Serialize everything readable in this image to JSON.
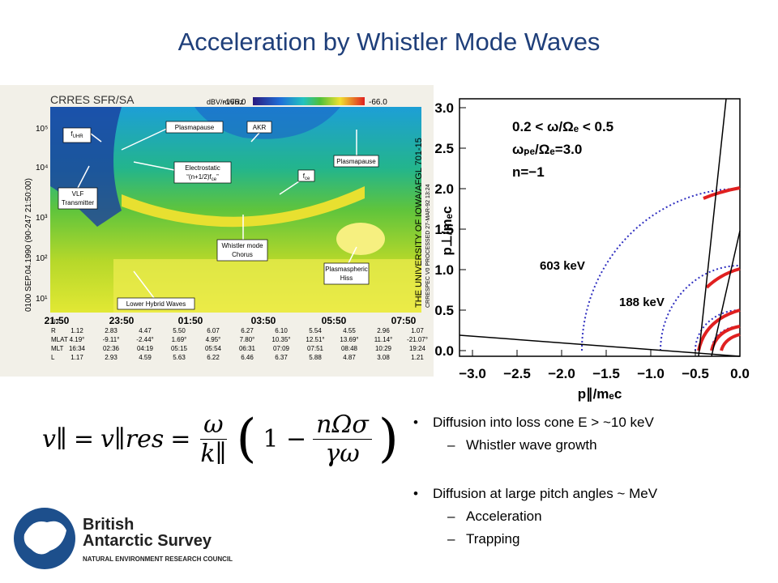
{
  "title": "Acceleration by Whistler Mode Waves",
  "spectrogram": {
    "header": "CRRES SFR/SA",
    "colorbar_unit": "dBV/m/√Hz",
    "colorbar_min": "-166.0",
    "colorbar_max": "-66.0",
    "left_caption": "0100  SEP.04.1990  (90-247 21:50:00)",
    "right_caption": "THE UNIVERSITY OF IOWA/AFGL 701-15",
    "right_caption2": "CRRESPEC V0    PROCESSED 27-MAR-92 13:24",
    "yticks": [
      "10¹",
      "10²",
      "10³",
      "10⁴",
      "10⁵"
    ],
    "annotations": [
      {
        "lines": [
          [
            "f",
            "UHR"
          ]
        ]
      },
      {
        "lines": [
          [
            "Plasmapause"
          ]
        ]
      },
      {
        "lines": [
          [
            "AKR"
          ]
        ]
      },
      {
        "lines": [
          [
            "Electrostatic"
          ],
          [
            "“(n+1/2)f",
            "ce",
            "”"
          ]
        ]
      },
      {
        "lines": [
          [
            "f",
            "ce"
          ]
        ]
      },
      {
        "lines": [
          [
            "Plasmapause"
          ]
        ]
      },
      {
        "lines": [
          [
            "VLF"
          ],
          [
            "Transmitter"
          ]
        ]
      },
      {
        "lines": [
          [
            "Whistler mode"
          ],
          [
            "Chorus"
          ]
        ]
      },
      {
        "lines": [
          [
            "Plasmaspheric"
          ],
          [
            "Hiss"
          ]
        ]
      },
      {
        "lines": [
          [
            "Lower Hybrid Waves"
          ]
        ]
      }
    ],
    "table": {
      "row_labels": [
        "UT",
        "R",
        "MLAT",
        "MLT",
        "L"
      ],
      "ut": [
        "21:50",
        "23:50",
        "01:50",
        "03:50",
        "05:50",
        "07:50"
      ],
      "rows": [
        [
          "1.12",
          "2.83",
          "4.47",
          "5.50",
          "6.07",
          "6.27",
          "6.10",
          "5.54",
          "4.55",
          "2.96",
          "1.07"
        ],
        [
          "4.19°",
          "-9.11°",
          "-2.44°",
          "1.69°",
          "4.95°",
          "7.80°",
          "10.35°",
          "12.51°",
          "13.69°",
          "11.14°",
          "-21.07°"
        ],
        [
          "16:34",
          "02:36",
          "04:19",
          "05:15",
          "05:54",
          "06:31",
          "07:09",
          "07:51",
          "08:48",
          "10:29",
          "19:24"
        ],
        [
          "1.17",
          "2.93",
          "4.59",
          "5.63",
          "6.22",
          "6.46",
          "6.37",
          "5.88",
          "4.87",
          "3.08",
          "1.21"
        ]
      ]
    }
  },
  "plot": {
    "yticks": [
      "0.0",
      "0.5",
      "1.0",
      "1.5",
      "2.0",
      "2.5",
      "3.0"
    ],
    "xticks": [
      "−3.0",
      "−2.5",
      "−2.0",
      "−1.5",
      "−1.0",
      "−0.5",
      "0.0"
    ],
    "ylabel": "p⊥/mₑc",
    "xlabel": "p∥/mₑc",
    "annotations": [
      "0.2 < ω/Ωₑ < 0.5",
      "ωₚₑ/Ωₑ=3.0",
      "n=−1"
    ],
    "curve_labels": [
      "603 keV",
      "188 keV"
    ]
  },
  "equation": {
    "lhs": "v∥",
    "eq1": "=",
    "mid": "v∥res",
    "eq2": "=",
    "num1": "ω",
    "den1": "k∥",
    "open": "(",
    "one": "1 −",
    "num2": "nΩσ",
    "den2": "γω",
    "close": ")"
  },
  "bullets": [
    {
      "text": "Diffusion into loss cone E > ~10 keV",
      "sub": [
        "Whistler wave growth"
      ]
    },
    {
      "text": "Diffusion at large pitch angles ~ MeV",
      "sub": [
        "Acceleration",
        "Trapping"
      ]
    }
  ],
  "logo": {
    "line1": "British",
    "line2": "Antarctic Survey",
    "line3": "NATURAL ENVIRONMENT RESEARCH COUNCIL"
  }
}
